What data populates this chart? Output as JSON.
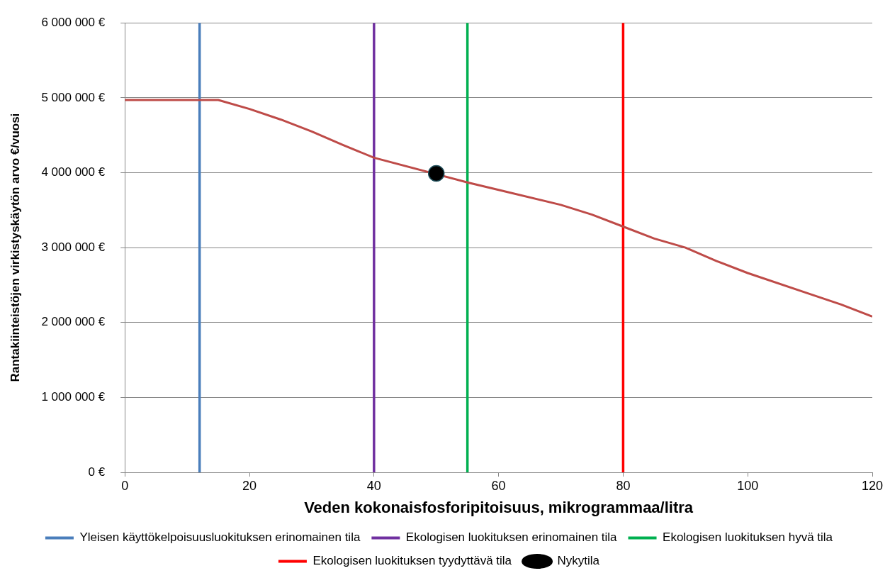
{
  "chart_data": {
    "type": "line",
    "xlabel": "Veden kokonaisfosforipitoisuus, mikrogrammaa/litra",
    "ylabel": "Rantakiinteistöjen virkistyskäytön arvo €/vuosi",
    "xlim": [
      0,
      120
    ],
    "xticks": [
      0,
      20,
      40,
      60,
      80,
      100,
      120
    ],
    "ylim": [
      0,
      6000000
    ],
    "yticks": [
      {
        "value": 0,
        "label": "0 €"
      },
      {
        "value": 1000000,
        "label": "1 000 000 €"
      },
      {
        "value": 2000000,
        "label": "2 000 000 €"
      },
      {
        "value": 3000000,
        "label": "3 000 000 €"
      },
      {
        "value": 4000000,
        "label": "4 000 000 €"
      },
      {
        "value": 5000000,
        "label": "5 000 000 €"
      },
      {
        "value": 6000000,
        "label": "6 000 000 €"
      }
    ],
    "grid": "y",
    "legend": "bottom",
    "marker": "none",
    "ref_lines": [
      {
        "axis": "x",
        "value": 12,
        "label": "Yleisen käyttökelpoisuusluokituksen erinomainen tila",
        "color": "#4a7ebb"
      },
      {
        "axis": "x",
        "value": 40,
        "label": "Ekologisen luokituksen erinomainen tila",
        "color": "#7030a0"
      },
      {
        "axis": "x",
        "value": 55,
        "label": "Ekologisen luokituksen hyvä tila",
        "color": "#00b050"
      },
      {
        "axis": "x",
        "value": 80,
        "label": "Ekologisen luokituksen tyydyttävä tila",
        "color": "#ff0000"
      }
    ],
    "series": [
      {
        "color": "#be4b48",
        "x": [
          0,
          15,
          20,
          25,
          30,
          35,
          40,
          50,
          55,
          60,
          70,
          75,
          80,
          85,
          90,
          95,
          100,
          110,
          115,
          120
        ],
        "values": [
          4970000,
          4970000,
          4850000,
          4710000,
          4550000,
          4370000,
          4200000,
          null,
          3870000,
          3770000,
          3570000,
          3440000,
          3280000,
          3120000,
          3000000,
          2820000,
          2660000,
          2380000,
          2240000,
          2080000
        ]
      },
      {
        "name": "Nykytila",
        "type": "scatter",
        "color": "#000000",
        "marker": "circle",
        "x": [
          50
        ],
        "values": [
          3990000
        ]
      }
    ]
  }
}
